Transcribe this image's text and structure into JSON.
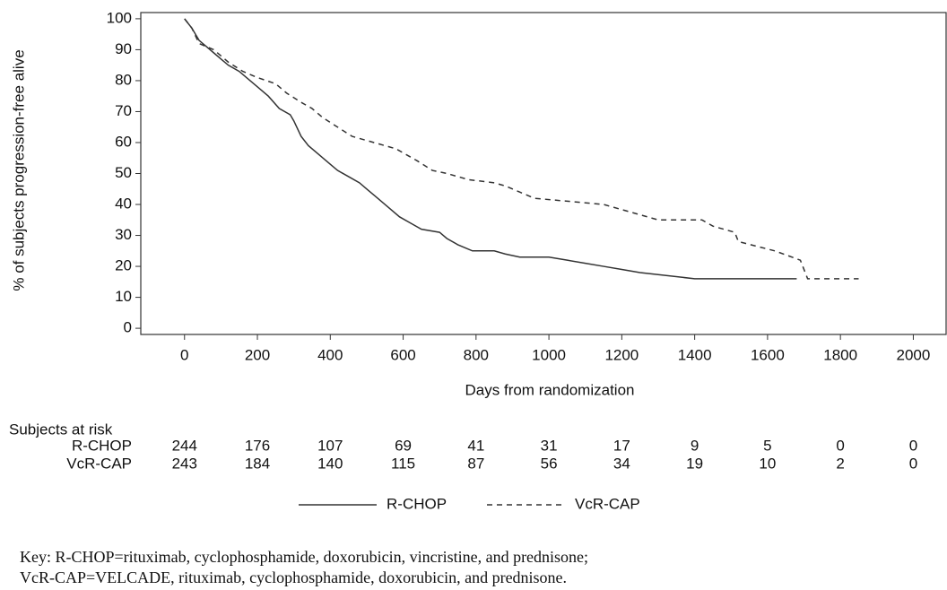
{
  "chart_data": {
    "type": "line",
    "x_label": "Days from randomization",
    "y_label": "% of subjects progression-free alive",
    "xlim": [
      -120,
      2090
    ],
    "ylim": [
      -2,
      102
    ],
    "xticks": [
      0,
      200,
      400,
      600,
      800,
      1000,
      1200,
      1400,
      1600,
      1800,
      2000
    ],
    "yticks": [
      0,
      10,
      20,
      30,
      40,
      50,
      60,
      70,
      80,
      90,
      100
    ],
    "series": [
      {
        "name": "R-CHOP",
        "color": "#333333",
        "dash": "solid",
        "x": [
          0,
          20,
          40,
          60,
          80,
          100,
          120,
          150,
          180,
          200,
          230,
          260,
          290,
          300,
          320,
          340,
          370,
          400,
          420,
          450,
          480,
          500,
          530,
          560,
          590,
          620,
          650,
          700,
          720,
          750,
          790,
          850,
          880,
          920,
          1000,
          1050,
          1100,
          1150,
          1200,
          1250,
          1400,
          1680
        ],
        "values": [
          100,
          97,
          93,
          91,
          89,
          87,
          85,
          83,
          80,
          78,
          75,
          71,
          69,
          67,
          62,
          59,
          56,
          53,
          51,
          49,
          47,
          45,
          42,
          39,
          36,
          34,
          32,
          31,
          29,
          27,
          25,
          25,
          24,
          23,
          23,
          22,
          21,
          20,
          19,
          18,
          16,
          16
        ]
      },
      {
        "name": "VcR-CAP",
        "color": "#333333",
        "dash": "dashed",
        "x": [
          0,
          20,
          40,
          80,
          120,
          160,
          200,
          250,
          280,
          320,
          350,
          380,
          420,
          460,
          520,
          580,
          610,
          640,
          680,
          720,
          780,
          850,
          880,
          920,
          960,
          1150,
          1240,
          1300,
          1420,
          1450,
          1510,
          1520,
          1620,
          1690,
          1710,
          1850
        ],
        "values": [
          100,
          97,
          92,
          90,
          86,
          83,
          81,
          79,
          76,
          73,
          71,
          68,
          65,
          62,
          60,
          58,
          56,
          54,
          51,
          50,
          48,
          47,
          46,
          44,
          42,
          40,
          37,
          35,
          35,
          33,
          31,
          28,
          25,
          22,
          16,
          16
        ]
      }
    ]
  },
  "risk_table": {
    "title": "Subjects at risk",
    "rows": [
      {
        "name": "R-CHOP",
        "values": [
          "244",
          "176",
          "107",
          "69",
          "41",
          "31",
          "17",
          "9",
          "5",
          "0",
          "0"
        ]
      },
      {
        "name": "VcR-CAP",
        "values": [
          "243",
          "184",
          "140",
          "115",
          "87",
          "56",
          "34",
          "19",
          "10",
          "2",
          "0"
        ]
      }
    ]
  },
  "footnote": [
    "Key: R-CHOP=rituximab, cyclophosphamide, doxorubicin, vincristine, and prednisone;",
    "VcR-CAP=VELCADE, rituximab, cyclophosphamide, doxorubicin, and prednisone."
  ]
}
